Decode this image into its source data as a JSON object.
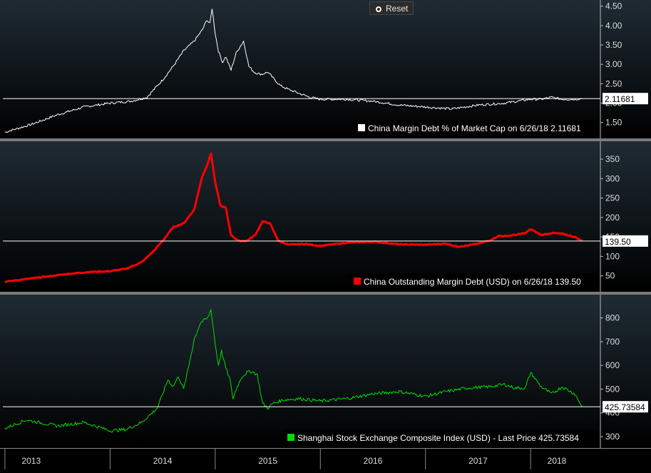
{
  "toolbar": {
    "reset_label": "Reset"
  },
  "colors": {
    "panel_top": "#1d2a33",
    "panel_bottom": "#000000",
    "white_series": "#ffffff",
    "red_series": "#ff0000",
    "green_series": "#00dd00",
    "divider": "#7a7a7a"
  },
  "chart_data": [
    {
      "type": "line",
      "title": "",
      "legend": "China Margin Debt % of Market Cap on 6/26/18 2.11681",
      "legend_placement": "bottom-right",
      "color": "#ffffff",
      "last_value": 2.11681,
      "last_label": "2.11681",
      "ylim": [
        1.2,
        4.55
      ],
      "yticks": [
        1.5,
        2.0,
        2.5,
        3.0,
        3.5,
        4.0,
        4.5
      ],
      "ytick_labels": [
        "1.50",
        "2.00",
        "2.50",
        "3.00",
        "3.50",
        "4.00",
        "4.50"
      ],
      "x": [
        2013.0,
        2013.25,
        2013.5,
        2013.75,
        2014.0,
        2014.2,
        2014.35,
        2014.5,
        2014.6,
        2014.7,
        2014.8,
        2014.88,
        2014.92,
        2014.95,
        2014.97,
        2015.0,
        2015.03,
        2015.07,
        2015.1,
        2015.15,
        2015.2,
        2015.27,
        2015.32,
        2015.37,
        2015.42,
        2015.45,
        2015.5,
        2015.55,
        2015.62,
        2015.7,
        2015.8,
        2015.9,
        2016.0,
        2016.25,
        2016.5,
        2016.75,
        2017.0,
        2017.25,
        2017.5,
        2017.75,
        2018.0,
        2018.1,
        2018.2,
        2018.3,
        2018.42,
        2018.49
      ],
      "y": [
        1.25,
        1.45,
        1.7,
        1.9,
        2.0,
        2.05,
        2.15,
        2.6,
        2.95,
        3.35,
        3.6,
        3.9,
        4.15,
        4.05,
        4.45,
        3.8,
        3.35,
        3.05,
        3.2,
        2.85,
        3.3,
        3.6,
        2.95,
        2.8,
        2.75,
        2.75,
        2.8,
        2.65,
        2.45,
        2.35,
        2.25,
        2.15,
        2.1,
        2.1,
        2.05,
        1.95,
        1.9,
        1.85,
        1.95,
        2.0,
        2.1,
        2.1,
        2.15,
        2.1,
        2.1,
        2.12
      ]
    },
    {
      "type": "line",
      "title": "",
      "legend": "China Outstanding Margin Debt (USD) on 6/26/18 139.50",
      "legend_placement": "bottom-right",
      "color": "#ff0000",
      "last_value": 139.5,
      "last_label": "139.50",
      "ylim": [
        20,
        385
      ],
      "yticks": [
        50,
        100,
        150,
        200,
        250,
        300,
        350
      ],
      "ytick_labels": [
        "50",
        "100",
        "150",
        "200",
        "250",
        "300",
        "350"
      ],
      "x": [
        2013.0,
        2013.3,
        2013.6,
        2013.8,
        2014.0,
        2014.15,
        2014.3,
        2014.4,
        2014.5,
        2014.6,
        2014.7,
        2014.8,
        2014.87,
        2014.93,
        2014.96,
        2015.0,
        2015.05,
        2015.1,
        2015.15,
        2015.22,
        2015.3,
        2015.38,
        2015.45,
        2015.52,
        2015.6,
        2015.7,
        2015.85,
        2016.0,
        2016.25,
        2016.5,
        2016.75,
        2017.0,
        2017.2,
        2017.3,
        2017.4,
        2017.5,
        2017.6,
        2017.7,
        2017.75,
        2017.85,
        2017.95,
        2018.0,
        2018.1,
        2018.2,
        2018.3,
        2018.42,
        2018.49
      ],
      "y": [
        35,
        45,
        55,
        60,
        62,
        68,
        85,
        110,
        140,
        175,
        185,
        220,
        300,
        340,
        365,
        290,
        230,
        225,
        155,
        140,
        140,
        155,
        190,
        185,
        140,
        130,
        132,
        127,
        135,
        138,
        131,
        130,
        133,
        125,
        128,
        133,
        140,
        153,
        152,
        155,
        160,
        170,
        155,
        160,
        158,
        150,
        139.5
      ]
    },
    {
      "type": "line",
      "title": "",
      "legend": "Shanghai Stock Exchange Composite Index (USD) - Last Price 425.73584",
      "legend_placement": "bottom-right",
      "color": "#00dd00",
      "last_value": 425.73584,
      "last_label": "425.73584",
      "ylim": [
        270,
        880
      ],
      "yticks": [
        300,
        400,
        500,
        600,
        700,
        800
      ],
      "ytick_labels": [
        "300",
        "400",
        "500",
        "600",
        "700",
        "800"
      ],
      "x": [
        2013.0,
        2013.2,
        2013.5,
        2013.75,
        2014.0,
        2014.15,
        2014.3,
        2014.45,
        2014.55,
        2014.6,
        2014.65,
        2014.7,
        2014.75,
        2014.8,
        2014.86,
        2014.93,
        2014.96,
        2015.0,
        2015.03,
        2015.06,
        2015.1,
        2015.14,
        2015.17,
        2015.2,
        2015.25,
        2015.3,
        2015.35,
        2015.4,
        2015.45,
        2015.5,
        2015.55,
        2015.65,
        2015.8,
        2016.0,
        2016.25,
        2016.5,
        2016.75,
        2017.0,
        2017.2,
        2017.4,
        2017.6,
        2017.75,
        2017.85,
        2017.95,
        2018.0,
        2018.1,
        2018.2,
        2018.3,
        2018.42,
        2018.49
      ],
      "y": [
        335,
        370,
        345,
        360,
        325,
        330,
        360,
        420,
        540,
        510,
        555,
        500,
        600,
        710,
        780,
        800,
        835,
        690,
        600,
        660,
        590,
        540,
        460,
        500,
        550,
        570,
        575,
        560,
        440,
        420,
        440,
        455,
        460,
        450,
        460,
        480,
        490,
        470,
        490,
        505,
        510,
        520,
        505,
        505,
        570,
        510,
        480,
        510,
        480,
        426
      ]
    }
  ],
  "x_axis": {
    "labels": [
      "2013",
      "2014",
      "2015",
      "2016",
      "2017",
      "2018"
    ],
    "year_starts": [
      2013,
      2014,
      2015,
      2016,
      2017,
      2018
    ],
    "label_positions": [
      2013.25,
      2014.5,
      2015.5,
      2016.5,
      2017.5,
      2018.25
    ],
    "xlim": [
      2012.98,
      2018.65
    ]
  }
}
